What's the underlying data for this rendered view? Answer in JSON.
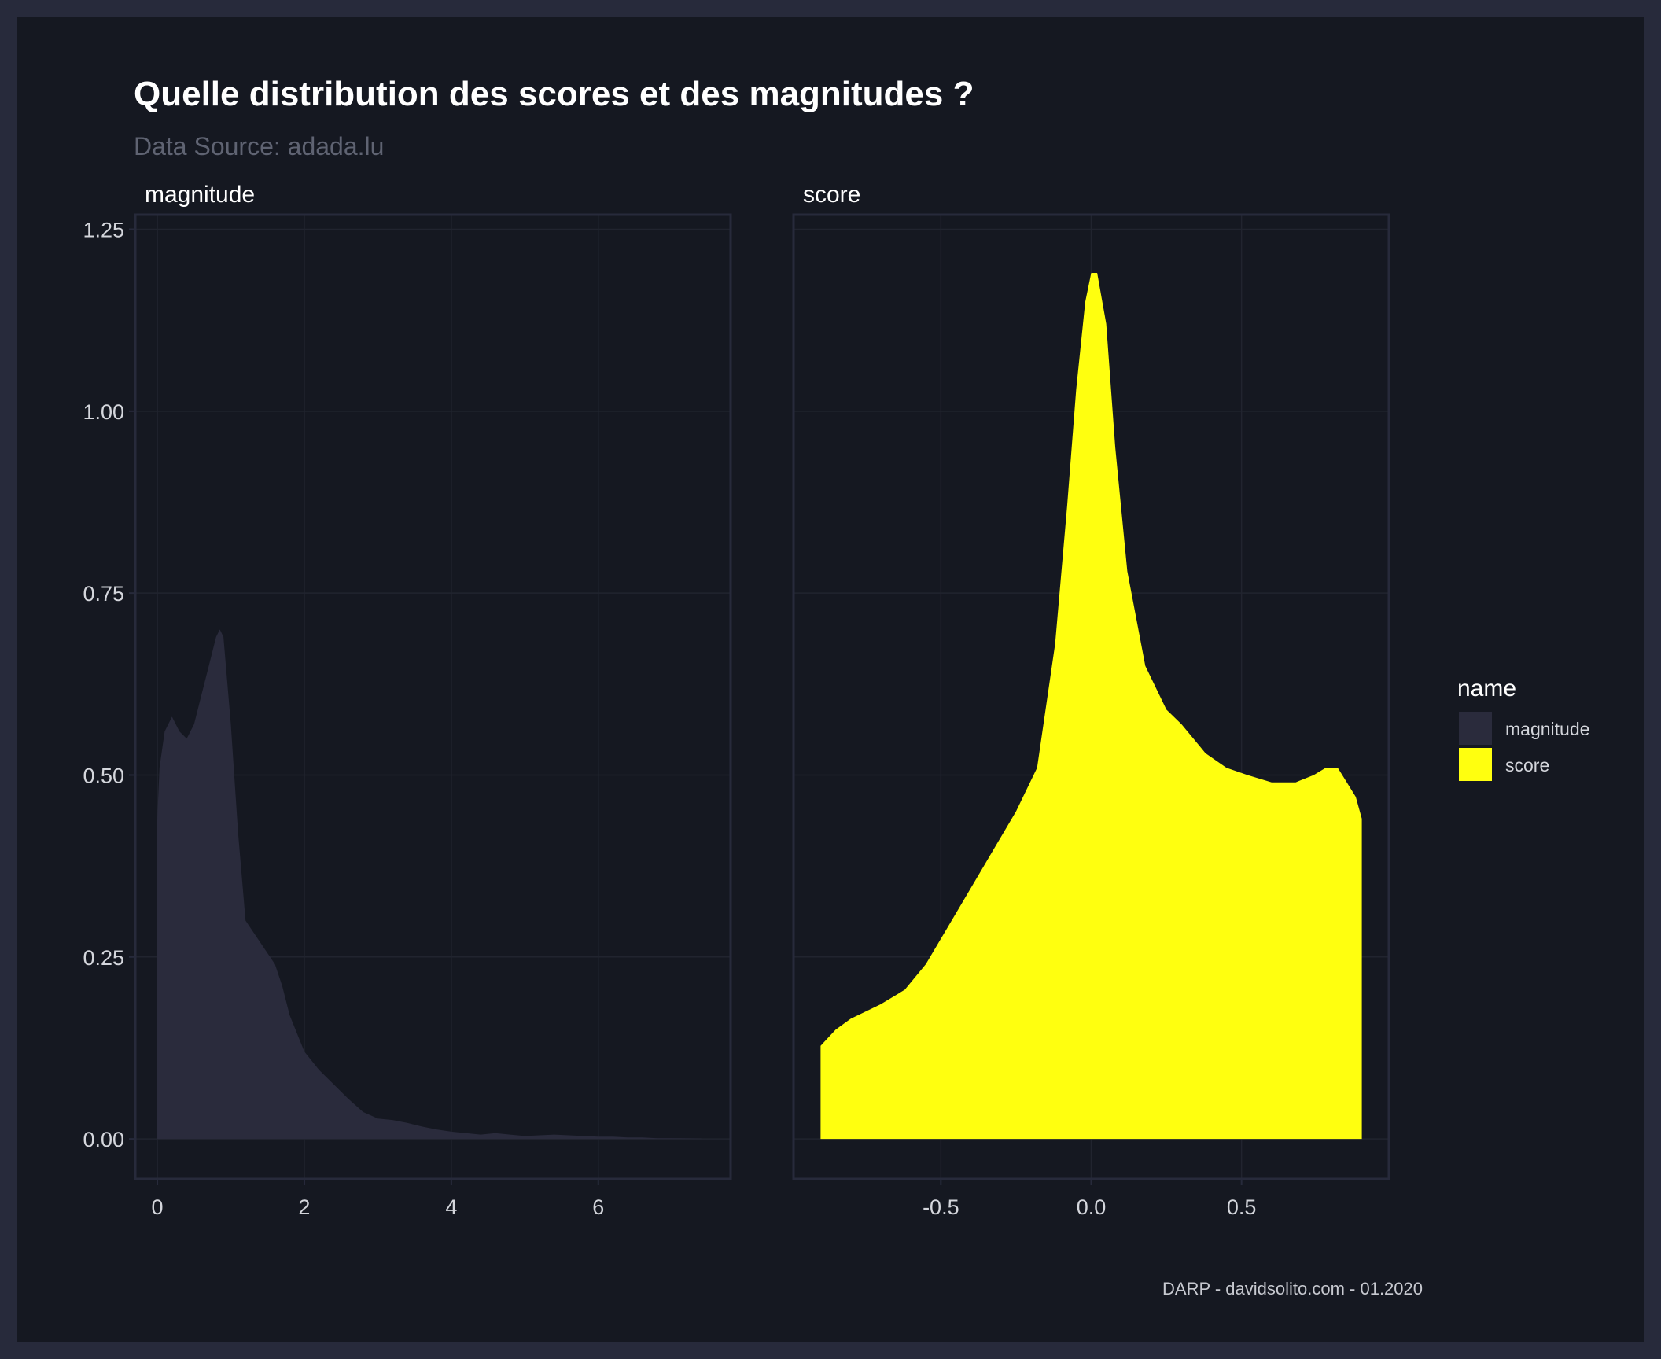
{
  "title": "Quelle distribution des scores et des magnitudes ?",
  "subtitle": "Data Source: adada.lu",
  "caption": "DARP - davidsolito.com - 01.2020",
  "colors": {
    "background": "#151821",
    "border": "#272a3b",
    "grid": "#21242f",
    "magnitude": "#2a2b3c",
    "score": "#ffff0f"
  },
  "chart_data": {
    "type": "area",
    "facets": [
      {
        "name": "magnitude",
        "xlim": [
          -0.3,
          7.8
        ],
        "xticks": [
          0,
          2,
          4,
          6
        ],
        "x": [
          0,
          0.03,
          0.1,
          0.2,
          0.3,
          0.4,
          0.5,
          0.6,
          0.7,
          0.8,
          0.85,
          0.9,
          1.0,
          1.1,
          1.2,
          1.4,
          1.6,
          1.7,
          1.8,
          2.0,
          2.2,
          2.4,
          2.6,
          2.8,
          3.0,
          3.2,
          3.4,
          3.6,
          3.8,
          4.0,
          4.2,
          4.4,
          4.6,
          4.8,
          5.0,
          5.2,
          5.4,
          5.6,
          5.8,
          6.0,
          6.2,
          6.4,
          6.6,
          6.8,
          7.0,
          7.2,
          7.4
        ],
        "y": [
          0.44,
          0.51,
          0.56,
          0.58,
          0.56,
          0.55,
          0.57,
          0.61,
          0.65,
          0.69,
          0.7,
          0.69,
          0.57,
          0.42,
          0.3,
          0.27,
          0.24,
          0.21,
          0.17,
          0.12,
          0.095,
          0.075,
          0.055,
          0.037,
          0.028,
          0.026,
          0.022,
          0.017,
          0.013,
          0.01,
          0.008,
          0.006,
          0.008,
          0.006,
          0.004,
          0.005,
          0.006,
          0.005,
          0.004,
          0.003,
          0.003,
          0.002,
          0.002,
          0.001,
          0.001,
          0.0008,
          0.0005
        ]
      },
      {
        "name": "score",
        "xlim": [
          -0.99,
          0.99
        ],
        "xticks": [
          -0.5,
          0.0,
          0.5
        ],
        "x": [
          -0.9,
          -0.85,
          -0.8,
          -0.7,
          -0.62,
          -0.55,
          -0.45,
          -0.35,
          -0.25,
          -0.18,
          -0.12,
          -0.08,
          -0.05,
          -0.02,
          0.0,
          0.02,
          0.05,
          0.08,
          0.12,
          0.18,
          0.25,
          0.3,
          0.38,
          0.45,
          0.52,
          0.6,
          0.68,
          0.74,
          0.78,
          0.82,
          0.85,
          0.88,
          0.9
        ],
        "y": [
          0.128,
          0.15,
          0.165,
          0.185,
          0.205,
          0.24,
          0.31,
          0.38,
          0.45,
          0.51,
          0.68,
          0.87,
          1.03,
          1.15,
          1.19,
          1.19,
          1.12,
          0.95,
          0.78,
          0.65,
          0.59,
          0.57,
          0.53,
          0.51,
          0.5,
          0.49,
          0.49,
          0.5,
          0.51,
          0.51,
          0.49,
          0.47,
          0.44
        ]
      }
    ],
    "ylim": [
      -0.055,
      1.27
    ],
    "yticks": [
      "0.00",
      "0.25",
      "0.50",
      "0.75",
      "1.00",
      "1.25"
    ],
    "legend": {
      "title": "name",
      "position": "right",
      "items": [
        "magnitude",
        "score"
      ]
    }
  }
}
